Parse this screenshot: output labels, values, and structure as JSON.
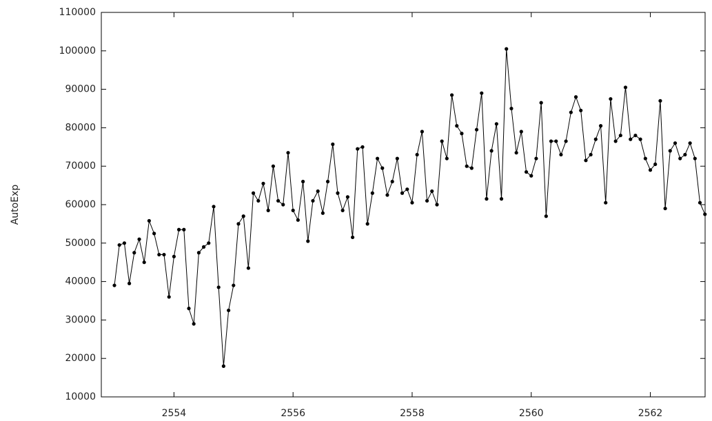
{
  "chart_data": {
    "type": "line",
    "y_label": "AutoExp",
    "x": [
      2553,
      2553.083,
      2553.167,
      2553.25,
      2553.333,
      2553.417,
      2553.5,
      2553.583,
      2553.667,
      2553.75,
      2553.833,
      2553.917,
      2554,
      2554.083,
      2554.167,
      2554.25,
      2554.333,
      2554.417,
      2554.5,
      2554.583,
      2554.667,
      2554.75,
      2554.833,
      2554.917,
      2555,
      2555.083,
      2555.167,
      2555.25,
      2555.333,
      2555.417,
      2555.5,
      2555.583,
      2555.667,
      2555.75,
      2555.833,
      2555.917,
      2556,
      2556.083,
      2556.167,
      2556.25,
      2556.333,
      2556.417,
      2556.5,
      2556.583,
      2556.667,
      2556.75,
      2556.833,
      2556.917,
      2557,
      2557.083,
      2557.167,
      2557.25,
      2557.333,
      2557.417,
      2557.5,
      2557.583,
      2557.667,
      2557.75,
      2557.833,
      2557.917,
      2558,
      2558.083,
      2558.167,
      2558.25,
      2558.333,
      2558.417,
      2558.5,
      2558.583,
      2558.667,
      2558.75,
      2558.833,
      2558.917,
      2559,
      2559.083,
      2559.167,
      2559.25,
      2559.333,
      2559.417,
      2559.5,
      2559.583,
      2559.667,
      2559.75,
      2559.833,
      2559.917,
      2560,
      2560.083,
      2560.167,
      2560.25,
      2560.333,
      2560.417,
      2560.5,
      2560.583,
      2560.667,
      2560.75,
      2560.833,
      2560.917,
      2561,
      2561.083,
      2561.167,
      2561.25,
      2561.333,
      2561.417,
      2561.5,
      2561.583,
      2561.667,
      2561.75,
      2561.833,
      2561.917,
      2562,
      2562.083,
      2562.167,
      2562.25,
      2562.333,
      2562.417,
      2562.5,
      2562.583,
      2562.667,
      2562.75,
      2562.833,
      2562.917
    ],
    "series": [
      {
        "color": "#000000",
        "values": [
          39000,
          49500,
          50000,
          39500,
          47500,
          51000,
          45000,
          55800,
          52500,
          47000,
          47000,
          36000,
          46500,
          53500,
          53500,
          33000,
          29000,
          47500,
          49000,
          50000,
          59500,
          38500,
          18000,
          32500,
          39000,
          55000,
          57000,
          43500,
          63000,
          61000,
          65500,
          58500,
          70000,
          61000,
          60000,
          73500,
          58500,
          56000,
          66000,
          50500,
          61000,
          63500,
          57800,
          66000,
          75700,
          63000,
          58500,
          62000,
          51500,
          74500,
          75000,
          55000,
          63000,
          72000,
          69500,
          62500,
          66000,
          72000,
          63000,
          64000,
          60500,
          73000,
          79000,
          61000,
          63500,
          60000,
          76500,
          72000,
          88500,
          80500,
          78500,
          70000,
          69500,
          79500,
          89000,
          61500,
          74000,
          81000,
          61500,
          100500,
          85000,
          73500,
          79000,
          68500,
          67500,
          72000,
          86500,
          57000,
          76500,
          76500,
          73000,
          76500,
          84000,
          88000,
          84500,
          71500,
          73000,
          77000,
          80500,
          60500,
          87500,
          76500,
          78000,
          90500,
          77000,
          78000,
          77000,
          72000,
          69000,
          70500,
          87000,
          59000,
          74000,
          76000,
          72000,
          73000,
          76000,
          72000,
          60500,
          57500
        ]
      }
    ],
    "xlim": [
      2552.78,
      2562.92
    ],
    "xticks": [
      2554,
      2556,
      2558,
      2560,
      2562
    ],
    "ylim": [
      10000,
      110000
    ],
    "yticks": [
      10000,
      20000,
      30000,
      40000,
      50000,
      60000,
      70000,
      80000,
      90000,
      100000,
      110000
    ],
    "markers": true
  }
}
